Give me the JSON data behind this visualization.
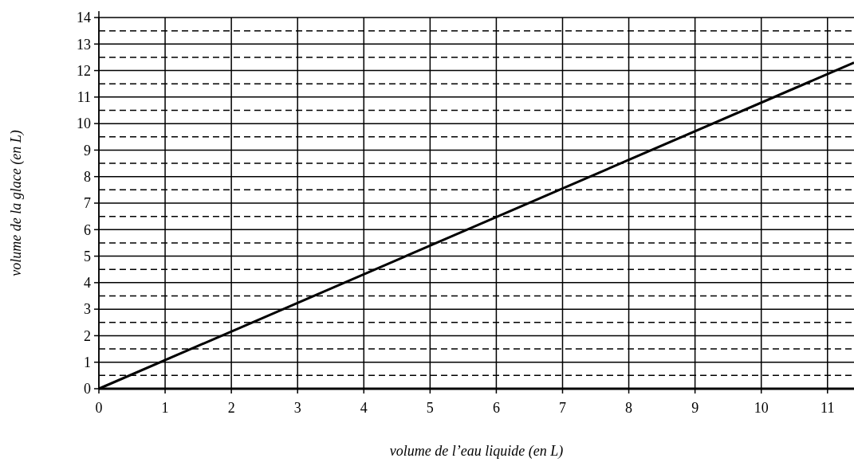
{
  "chart_data": {
    "type": "line",
    "xlabel": "volume de l’eau liquide (en L)",
    "ylabel": "volume de la glace (en L)",
    "x": [
      0,
      11.4
    ],
    "series": [
      {
        "color": "#000000",
        "values": [
          0,
          12.3
        ]
      }
    ],
    "xlim": [
      0,
      11.4
    ],
    "xticks": [
      0,
      1,
      2,
      3,
      4,
      5,
      6,
      7,
      8,
      9,
      10,
      11
    ],
    "ylim": [
      0,
      14
    ],
    "yticks": [
      0,
      1,
      2,
      3,
      4,
      5,
      6,
      7,
      8,
      9,
      10,
      11,
      12,
      13,
      14
    ],
    "grid": true,
    "marker": "none",
    "line_style": "solid",
    "ref_lines": [
      {
        "axis": "y",
        "value": 0.5,
        "line_style": "dashed"
      },
      {
        "axis": "y",
        "value": 1.5,
        "line_style": "dashed"
      },
      {
        "axis": "y",
        "value": 2.5,
        "line_style": "dashed"
      },
      {
        "axis": "y",
        "value": 3.5,
        "line_style": "dashed"
      },
      {
        "axis": "y",
        "value": 4.5,
        "line_style": "dashed"
      },
      {
        "axis": "y",
        "value": 5.5,
        "line_style": "dashed"
      },
      {
        "axis": "y",
        "value": 6.5,
        "line_style": "dashed"
      },
      {
        "axis": "y",
        "value": 7.5,
        "line_style": "dashed"
      },
      {
        "axis": "y",
        "value": 8.5,
        "line_style": "dashed"
      },
      {
        "axis": "y",
        "value": 9.5,
        "line_style": "dashed"
      },
      {
        "axis": "y",
        "value": 10.5,
        "line_style": "dashed"
      },
      {
        "axis": "y",
        "value": 11.5,
        "line_style": "dashed"
      },
      {
        "axis": "y",
        "value": 12.5,
        "line_style": "dashed"
      },
      {
        "axis": "y",
        "value": 13.5,
        "line_style": "dashed"
      }
    ]
  }
}
